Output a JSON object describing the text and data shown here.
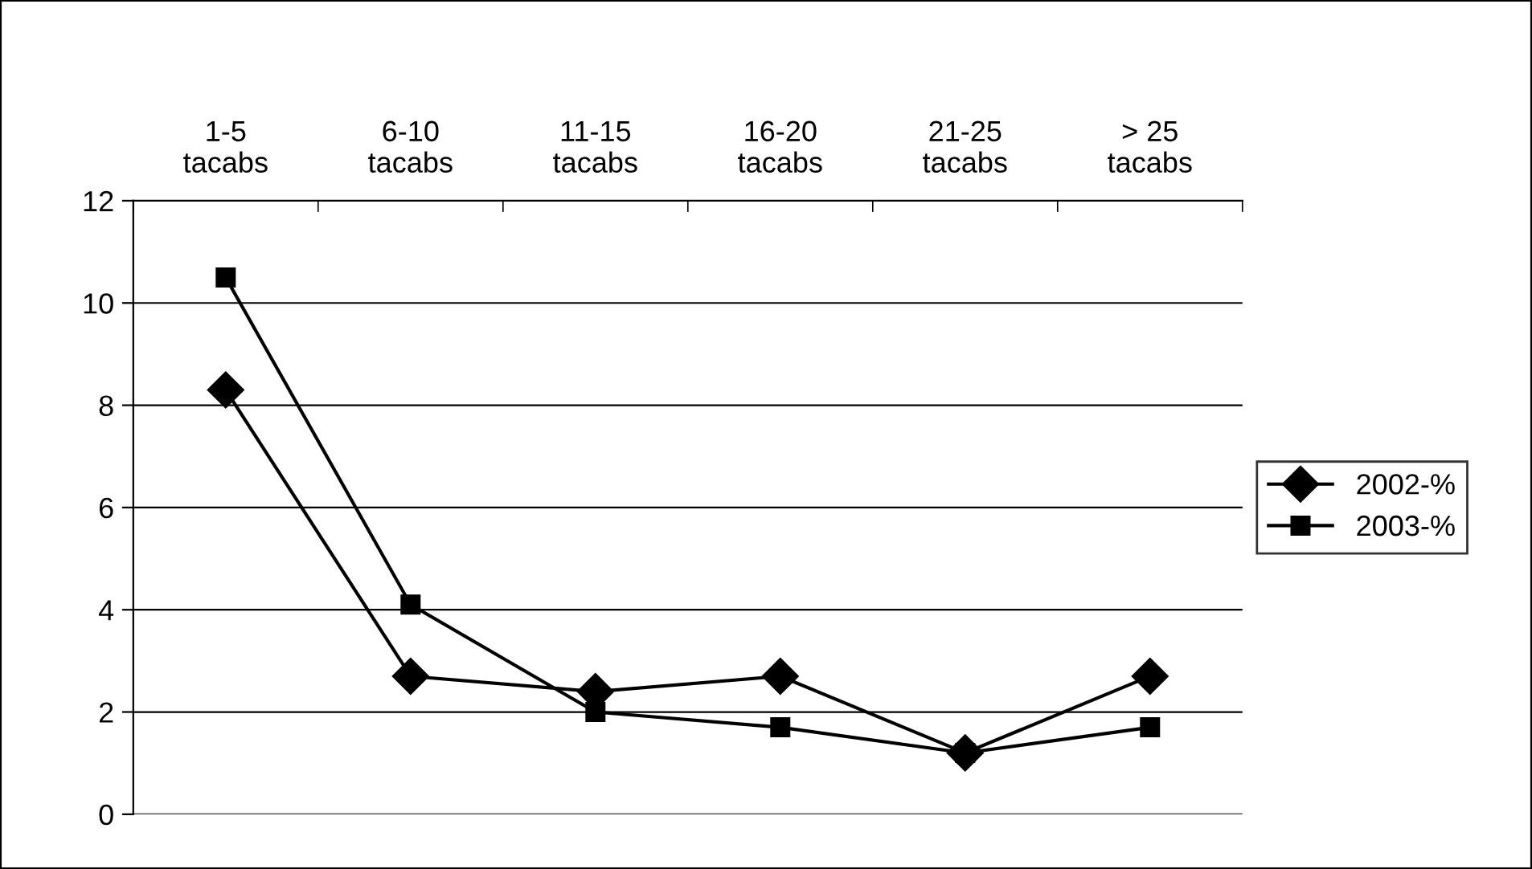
{
  "chart_data": {
    "type": "line",
    "categories": [
      "1-5\ntacabs",
      "6-10\ntacabs",
      "11-15\ntacabs",
      "16-20\ntacabs",
      "21-25\ntacabs",
      "> 25\ntacabs"
    ],
    "series": [
      {
        "name": "2002-%",
        "color": "#000000",
        "marker": "diamond",
        "values": [
          8.3,
          2.7,
          2.4,
          2.7,
          1.2,
          2.7
        ]
      },
      {
        "name": "2003-%",
        "color": "#000000",
        "marker": "square",
        "values": [
          10.5,
          4.1,
          2.0,
          1.7,
          1.2,
          1.7
        ]
      }
    ],
    "ylim": [
      0,
      12
    ],
    "yticks": [
      0,
      2,
      4,
      6,
      8,
      10,
      12
    ],
    "grid": "y",
    "legend": "right",
    "line_style": "solid"
  }
}
